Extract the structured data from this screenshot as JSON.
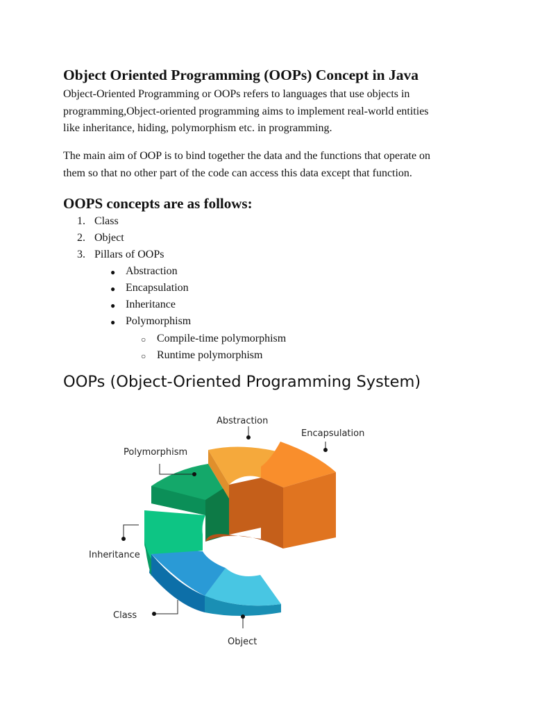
{
  "heading": "Object Oriented Programming (OOPs) Concept in Java",
  "intro_lines": [
    "Object-Oriented Programming or OOPs refers to languages that use objects in",
    "programming,Object-oriented programming aims to implement real-world entities",
    "like inheritance, hiding, polymorphism etc. in programming."
  ],
  "aim_lines": [
    "The main aim of OOP is to bind together the data and the functions that operate on",
    "them so that no other part of the code can access this data except that function."
  ],
  "concepts_heading": "OOPS concepts are as follows:",
  "list": {
    "items": [
      {
        "num": "1.",
        "label": "Class"
      },
      {
        "num": "2.",
        "label": "Object"
      },
      {
        "num": "3.",
        "label": "Pillars of OOPs"
      }
    ],
    "pillars": [
      "Abstraction",
      "Encapsulation",
      "Inheritance",
      "Polymorphism"
    ],
    "polymorphism_types": [
      "Compile-time polymorphism",
      "Runtime polymorphism"
    ],
    "bullet_symbol": "●",
    "sub_bullet_symbol": "○"
  },
  "figure": {
    "title": "OOPs (Object-Oriented Programming System)",
    "labels": {
      "abstraction": "Abstraction",
      "encapsulation": "Encapsulation",
      "polymorphism": "Polymorphism",
      "inheritance": "Inheritance",
      "class": "Class",
      "object": "Object"
    },
    "colors": {
      "abstraction": "#f5a93c",
      "encapsulation": "#f98e2c",
      "polymorphism": "#14a86a",
      "inheritance": "#0dc584",
      "class": "#2a9ad6",
      "object": "#48c6e3"
    }
  }
}
